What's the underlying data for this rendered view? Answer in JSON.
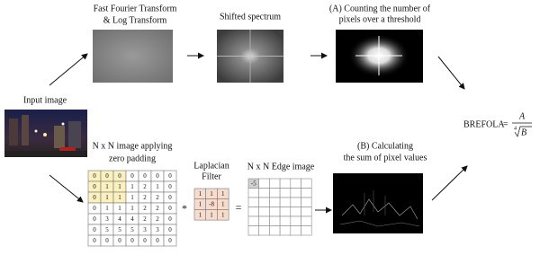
{
  "input_label": "Input image",
  "fft": {
    "line1": "Fast Fourier Transform",
    "line2": "& Log Transform"
  },
  "shifted": {
    "label": "Shifted spectrum"
  },
  "branch_a": {
    "line1": "(A) Counting the number of",
    "line2": "pixels over a threshold"
  },
  "formula": {
    "name": "BREFOLA",
    "equals": "=",
    "numerator": "A",
    "root_index": "4",
    "radicand": "B"
  },
  "padding": {
    "line1": "N x N image applying",
    "line2": "zero padding",
    "matrix": [
      [
        0,
        0,
        0,
        0,
        0,
        0,
        0
      ],
      [
        0,
        1,
        1,
        1,
        2,
        1,
        0
      ],
      [
        0,
        1,
        1,
        1,
        2,
        2,
        0
      ],
      [
        0,
        1,
        1,
        1,
        2,
        2,
        0
      ],
      [
        0,
        3,
        4,
        4,
        2,
        2,
        0
      ],
      [
        0,
        5,
        5,
        5,
        3,
        3,
        0
      ],
      [
        0,
        0,
        0,
        0,
        0,
        0,
        0
      ]
    ]
  },
  "convolve": "*",
  "laplacian": {
    "line1": "Laplacian",
    "line2": "Filter",
    "matrix": [
      [
        1,
        1,
        1
      ],
      [
        1,
        -8,
        1
      ],
      [
        1,
        1,
        1
      ]
    ]
  },
  "equals": "=",
  "edge": {
    "label": "N x N Edge image",
    "first_cell": -5
  },
  "branch_b": {
    "line1": "(B) Calculating",
    "line2": "the sum of pixel values"
  }
}
